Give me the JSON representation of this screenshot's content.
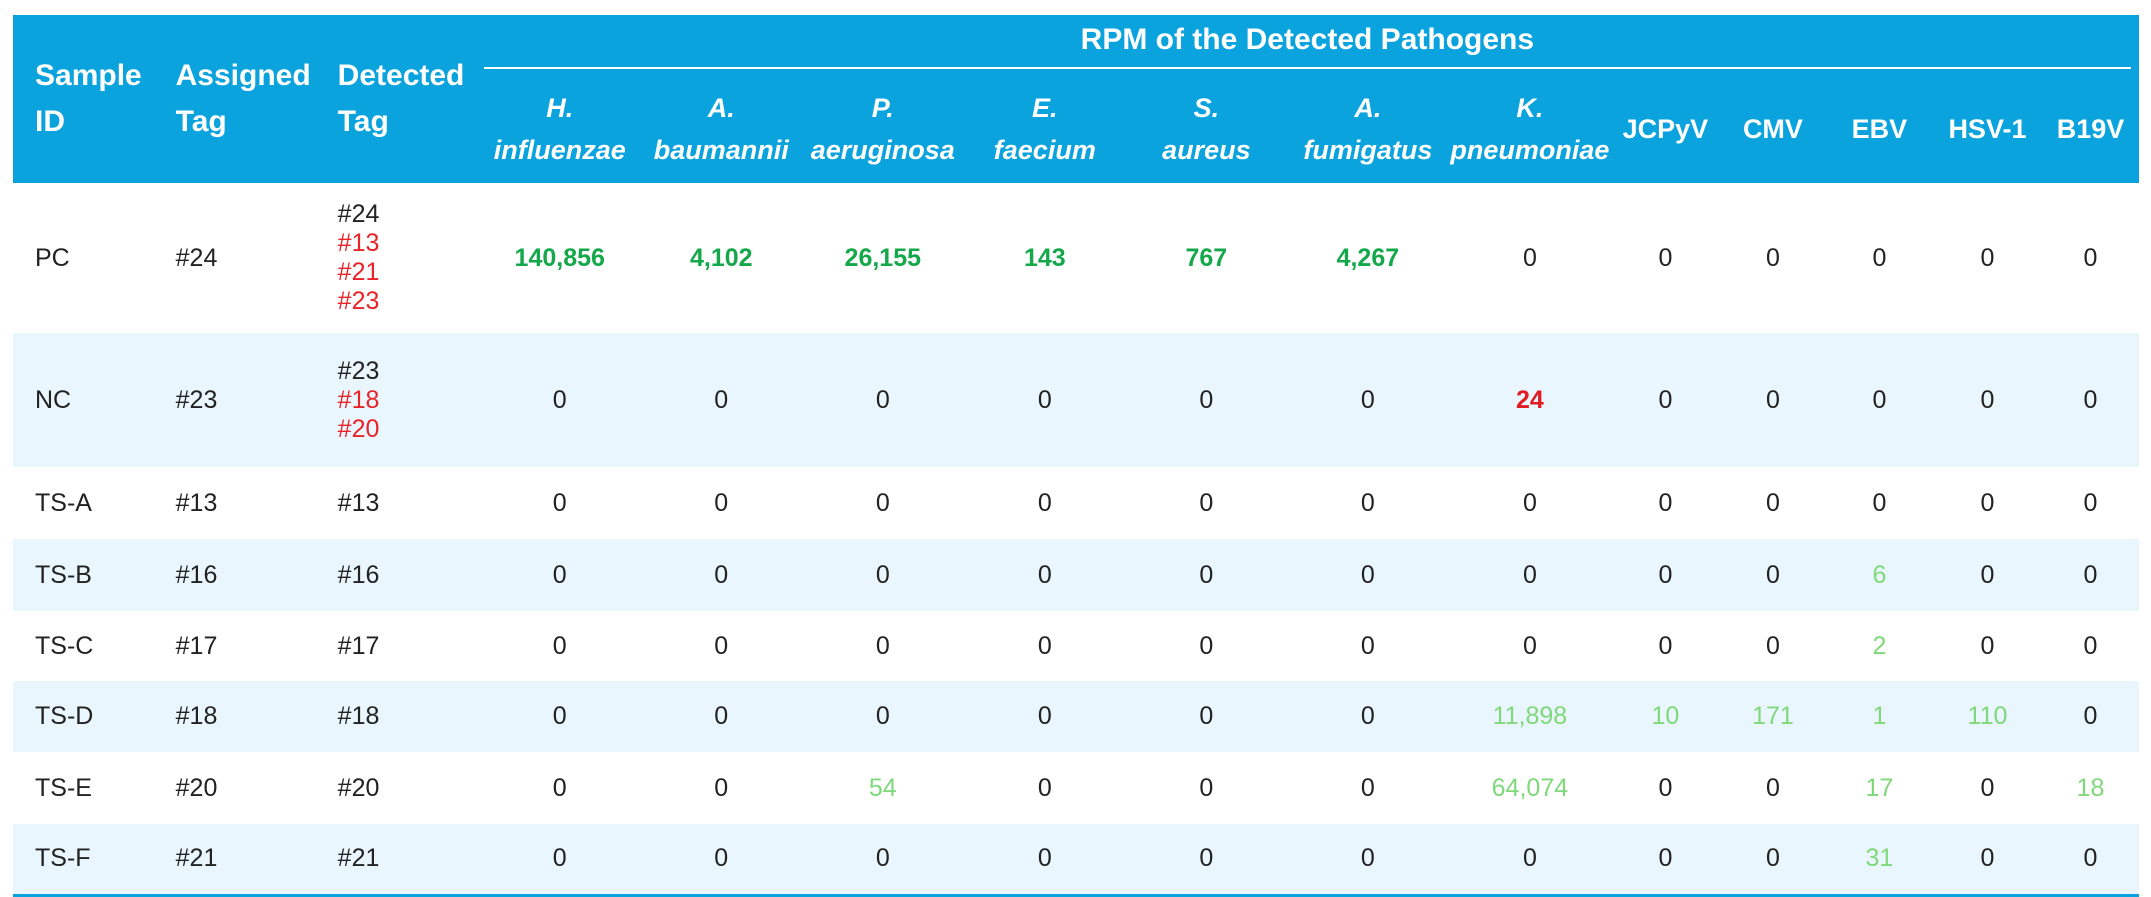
{
  "headers": {
    "sample_id": [
      "Sample",
      "ID"
    ],
    "assigned_tag": [
      "Assigned",
      "Tag"
    ],
    "detected_tag": [
      "Detected",
      "Tag"
    ],
    "group_title": "RPM of the Detected Pathogens",
    "pathogens": [
      [
        "H.",
        "influenzae"
      ],
      [
        "A.",
        "baumannii"
      ],
      [
        "P.",
        "aeruginosa"
      ],
      [
        "E.",
        "faecium"
      ],
      [
        "S.",
        "aureus"
      ],
      [
        "A.",
        "fumigatus"
      ],
      [
        "K.",
        "pneumoniae"
      ]
    ],
    "viruses": [
      "JCPyV",
      "CMV",
      "EBV",
      "HSV-1",
      "B19V"
    ]
  },
  "styles": {
    "header_bg": "#0aa3dd",
    "alt_row_bg": "#eaf6fd",
    "green_bold": "#14a84a",
    "light_green": "#7fd87a",
    "red": "#e8232a"
  },
  "rows": [
    {
      "sample_id": "PC",
      "assigned_tag": "#24",
      "detected_tags": [
        {
          "text": "#24",
          "color": "black"
        },
        {
          "text": "#13",
          "color": "red"
        },
        {
          "text": "#21",
          "color": "red"
        },
        {
          "text": "#23",
          "color": "red"
        }
      ],
      "values": [
        {
          "v": "140,856",
          "s": "green-bold"
        },
        {
          "v": "4,102",
          "s": "green-bold"
        },
        {
          "v": "26,155",
          "s": "green-bold"
        },
        {
          "v": "143",
          "s": "green-bold"
        },
        {
          "v": "767",
          "s": "green-bold"
        },
        {
          "v": "4,267",
          "s": "green-bold"
        },
        {
          "v": "0",
          "s": "black"
        },
        {
          "v": "0",
          "s": "black"
        },
        {
          "v": "0",
          "s": "black"
        },
        {
          "v": "0",
          "s": "black"
        },
        {
          "v": "0",
          "s": "black"
        },
        {
          "v": "0",
          "s": "black"
        }
      ]
    },
    {
      "sample_id": "NC",
      "assigned_tag": "#23",
      "detected_tags": [
        {
          "text": "#23",
          "color": "black"
        },
        {
          "text": "#18",
          "color": "red"
        },
        {
          "text": "#20",
          "color": "red"
        }
      ],
      "values": [
        {
          "v": "0",
          "s": "black"
        },
        {
          "v": "0",
          "s": "black"
        },
        {
          "v": "0",
          "s": "black"
        },
        {
          "v": "0",
          "s": "black"
        },
        {
          "v": "0",
          "s": "black"
        },
        {
          "v": "0",
          "s": "black"
        },
        {
          "v": "24",
          "s": "red-bold"
        },
        {
          "v": "0",
          "s": "black"
        },
        {
          "v": "0",
          "s": "black"
        },
        {
          "v": "0",
          "s": "black"
        },
        {
          "v": "0",
          "s": "black"
        },
        {
          "v": "0",
          "s": "black"
        }
      ]
    },
    {
      "sample_id": "TS-A",
      "assigned_tag": "#13",
      "detected_tags": [
        {
          "text": "#13",
          "color": "black"
        }
      ],
      "values": [
        {
          "v": "0",
          "s": "black"
        },
        {
          "v": "0",
          "s": "black"
        },
        {
          "v": "0",
          "s": "black"
        },
        {
          "v": "0",
          "s": "black"
        },
        {
          "v": "0",
          "s": "black"
        },
        {
          "v": "0",
          "s": "black"
        },
        {
          "v": "0",
          "s": "black"
        },
        {
          "v": "0",
          "s": "black"
        },
        {
          "v": "0",
          "s": "black"
        },
        {
          "v": "0",
          "s": "black"
        },
        {
          "v": "0",
          "s": "black"
        },
        {
          "v": "0",
          "s": "black"
        }
      ]
    },
    {
      "sample_id": "TS-B",
      "assigned_tag": "#16",
      "detected_tags": [
        {
          "text": "#16",
          "color": "black"
        }
      ],
      "values": [
        {
          "v": "0",
          "s": "black"
        },
        {
          "v": "0",
          "s": "black"
        },
        {
          "v": "0",
          "s": "black"
        },
        {
          "v": "0",
          "s": "black"
        },
        {
          "v": "0",
          "s": "black"
        },
        {
          "v": "0",
          "s": "black"
        },
        {
          "v": "0",
          "s": "black"
        },
        {
          "v": "0",
          "s": "black"
        },
        {
          "v": "0",
          "s": "black"
        },
        {
          "v": "6",
          "s": "lightgreen"
        },
        {
          "v": "0",
          "s": "black"
        },
        {
          "v": "0",
          "s": "black"
        }
      ]
    },
    {
      "sample_id": "TS-C",
      "assigned_tag": "#17",
      "detected_tags": [
        {
          "text": "#17",
          "color": "black"
        }
      ],
      "values": [
        {
          "v": "0",
          "s": "black"
        },
        {
          "v": "0",
          "s": "black"
        },
        {
          "v": "0",
          "s": "black"
        },
        {
          "v": "0",
          "s": "black"
        },
        {
          "v": "0",
          "s": "black"
        },
        {
          "v": "0",
          "s": "black"
        },
        {
          "v": "0",
          "s": "black"
        },
        {
          "v": "0",
          "s": "black"
        },
        {
          "v": "0",
          "s": "black"
        },
        {
          "v": "2",
          "s": "lightgreen"
        },
        {
          "v": "0",
          "s": "black"
        },
        {
          "v": "0",
          "s": "black"
        }
      ]
    },
    {
      "sample_id": "TS-D",
      "assigned_tag": "#18",
      "detected_tags": [
        {
          "text": "#18",
          "color": "black"
        }
      ],
      "values": [
        {
          "v": "0",
          "s": "black"
        },
        {
          "v": "0",
          "s": "black"
        },
        {
          "v": "0",
          "s": "black"
        },
        {
          "v": "0",
          "s": "black"
        },
        {
          "v": "0",
          "s": "black"
        },
        {
          "v": "0",
          "s": "black"
        },
        {
          "v": "11,898",
          "s": "lightgreen"
        },
        {
          "v": "10",
          "s": "lightgreen"
        },
        {
          "v": "171",
          "s": "lightgreen"
        },
        {
          "v": "1",
          "s": "lightgreen"
        },
        {
          "v": "110",
          "s": "lightgreen"
        },
        {
          "v": "0",
          "s": "black"
        }
      ]
    },
    {
      "sample_id": "TS-E",
      "assigned_tag": "#20",
      "detected_tags": [
        {
          "text": "#20",
          "color": "black"
        }
      ],
      "values": [
        {
          "v": "0",
          "s": "black"
        },
        {
          "v": "0",
          "s": "black"
        },
        {
          "v": "54",
          "s": "lightgreen"
        },
        {
          "v": "0",
          "s": "black"
        },
        {
          "v": "0",
          "s": "black"
        },
        {
          "v": "0",
          "s": "black"
        },
        {
          "v": "64,074",
          "s": "lightgreen"
        },
        {
          "v": "0",
          "s": "black"
        },
        {
          "v": "0",
          "s": "black"
        },
        {
          "v": "17",
          "s": "lightgreen"
        },
        {
          "v": "0",
          "s": "black"
        },
        {
          "v": "18",
          "s": "lightgreen"
        }
      ]
    },
    {
      "sample_id": "TS-F",
      "assigned_tag": "#21",
      "detected_tags": [
        {
          "text": "#21",
          "color": "black"
        }
      ],
      "values": [
        {
          "v": "0",
          "s": "black"
        },
        {
          "v": "0",
          "s": "black"
        },
        {
          "v": "0",
          "s": "black"
        },
        {
          "v": "0",
          "s": "black"
        },
        {
          "v": "0",
          "s": "black"
        },
        {
          "v": "0",
          "s": "black"
        },
        {
          "v": "0",
          "s": "black"
        },
        {
          "v": "0",
          "s": "black"
        },
        {
          "v": "0",
          "s": "black"
        },
        {
          "v": "31",
          "s": "lightgreen"
        },
        {
          "v": "0",
          "s": "black"
        },
        {
          "v": "0",
          "s": "black"
        }
      ]
    }
  ]
}
